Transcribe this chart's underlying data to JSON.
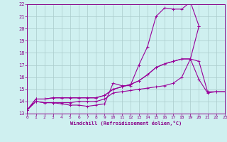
{
  "title": "",
  "xlabel": "Windchill (Refroidissement éolien,°C)",
  "ylabel": "",
  "bg_color": "#cff0f0",
  "line_color": "#990099",
  "grid_color": "#aacccc",
  "xmin": 0,
  "xmax": 23,
  "ymin": 13,
  "ymax": 22,
  "series": [
    {
      "x": [
        0,
        1,
        2,
        3,
        4,
        5,
        6,
        7,
        8,
        9,
        10,
        11,
        12,
        13,
        14,
        15,
        16,
        17,
        18,
        19,
        20
      ],
      "y": [
        13.3,
        14.0,
        13.9,
        13.9,
        13.8,
        13.7,
        13.7,
        13.6,
        13.7,
        13.8,
        15.5,
        15.3,
        15.3,
        17.0,
        18.5,
        21.0,
        21.7,
        21.6,
        21.6,
        22.2,
        20.2
      ]
    },
    {
      "x": [
        0,
        1,
        2,
        3,
        4,
        5,
        6,
        7,
        8,
        9,
        10,
        11,
        12,
        13,
        14,
        15,
        16,
        17,
        18,
        19,
        20,
        21,
        22,
        23
      ],
      "y": [
        13.3,
        14.0,
        13.9,
        13.9,
        13.9,
        13.9,
        14.0,
        14.0,
        14.0,
        14.2,
        14.7,
        14.8,
        14.9,
        15.0,
        15.1,
        15.2,
        15.3,
        15.5,
        16.0,
        17.5,
        15.8,
        14.7,
        14.8,
        14.8
      ]
    },
    {
      "x": [
        0,
        1,
        2,
        3,
        4,
        5,
        6,
        7,
        8,
        9,
        10,
        11,
        12,
        13,
        14,
        15,
        16,
        17,
        18,
        19,
        20
      ],
      "y": [
        13.3,
        14.2,
        14.2,
        14.3,
        14.3,
        14.3,
        14.3,
        14.3,
        14.3,
        14.5,
        15.0,
        15.2,
        15.4,
        15.7,
        16.2,
        16.8,
        17.1,
        17.3,
        17.5,
        17.5,
        20.2
      ]
    },
    {
      "x": [
        0,
        1,
        2,
        3,
        4,
        5,
        6,
        7,
        8,
        9,
        10,
        11,
        12,
        13,
        14,
        15,
        16,
        17,
        18,
        19,
        20,
        21,
        22,
        23
      ],
      "y": [
        13.3,
        14.2,
        14.2,
        14.3,
        14.3,
        14.3,
        14.3,
        14.3,
        14.3,
        14.5,
        15.0,
        15.2,
        15.4,
        15.7,
        16.2,
        16.8,
        17.1,
        17.3,
        17.5,
        17.5,
        17.3,
        14.8,
        14.8,
        14.8
      ]
    }
  ]
}
